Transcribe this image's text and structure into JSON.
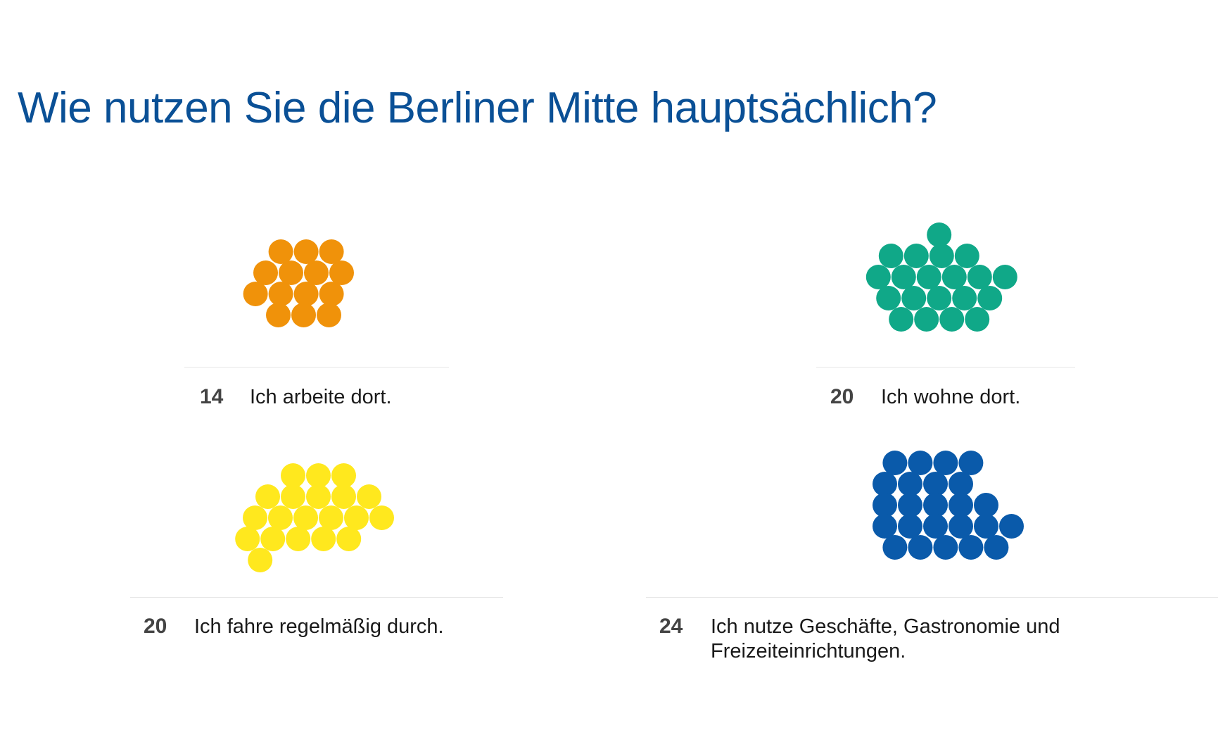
{
  "page": {
    "title": "Wie nutzen Sie die Berliner Mitte hauptsächlich?"
  },
  "chart_data": {
    "type": "dot-cluster",
    "title": "Wie nutzen Sie die Berliner Mitte hauptsächlich?",
    "categories": [
      "Ich arbeite dort.",
      "Ich wohne dort.",
      "Ich fahre regelmäßig durch.",
      "Ich nutze Geschäfte, Gastronomie und Freizeiteinrichtungen."
    ],
    "values": [
      14,
      20,
      20,
      24
    ],
    "colors": [
      "#f0920a",
      "#10a888",
      "#ffe81e",
      "#0a5aaa"
    ]
  },
  "groups": [
    {
      "count": "14",
      "label": "Ich arbeite dort.",
      "color": "#f0920a"
    },
    {
      "count": "20",
      "label": "Ich wohne dort.",
      "color": "#10a888"
    },
    {
      "count": "20",
      "label": "Ich fahre regelmäßig durch.",
      "color": "#ffe81e"
    },
    {
      "count": "24",
      "label": "Ich nutze Geschäfte, Gastronomie und Freizeiteinrichtungen.",
      "color": "#0a5aaa"
    }
  ]
}
